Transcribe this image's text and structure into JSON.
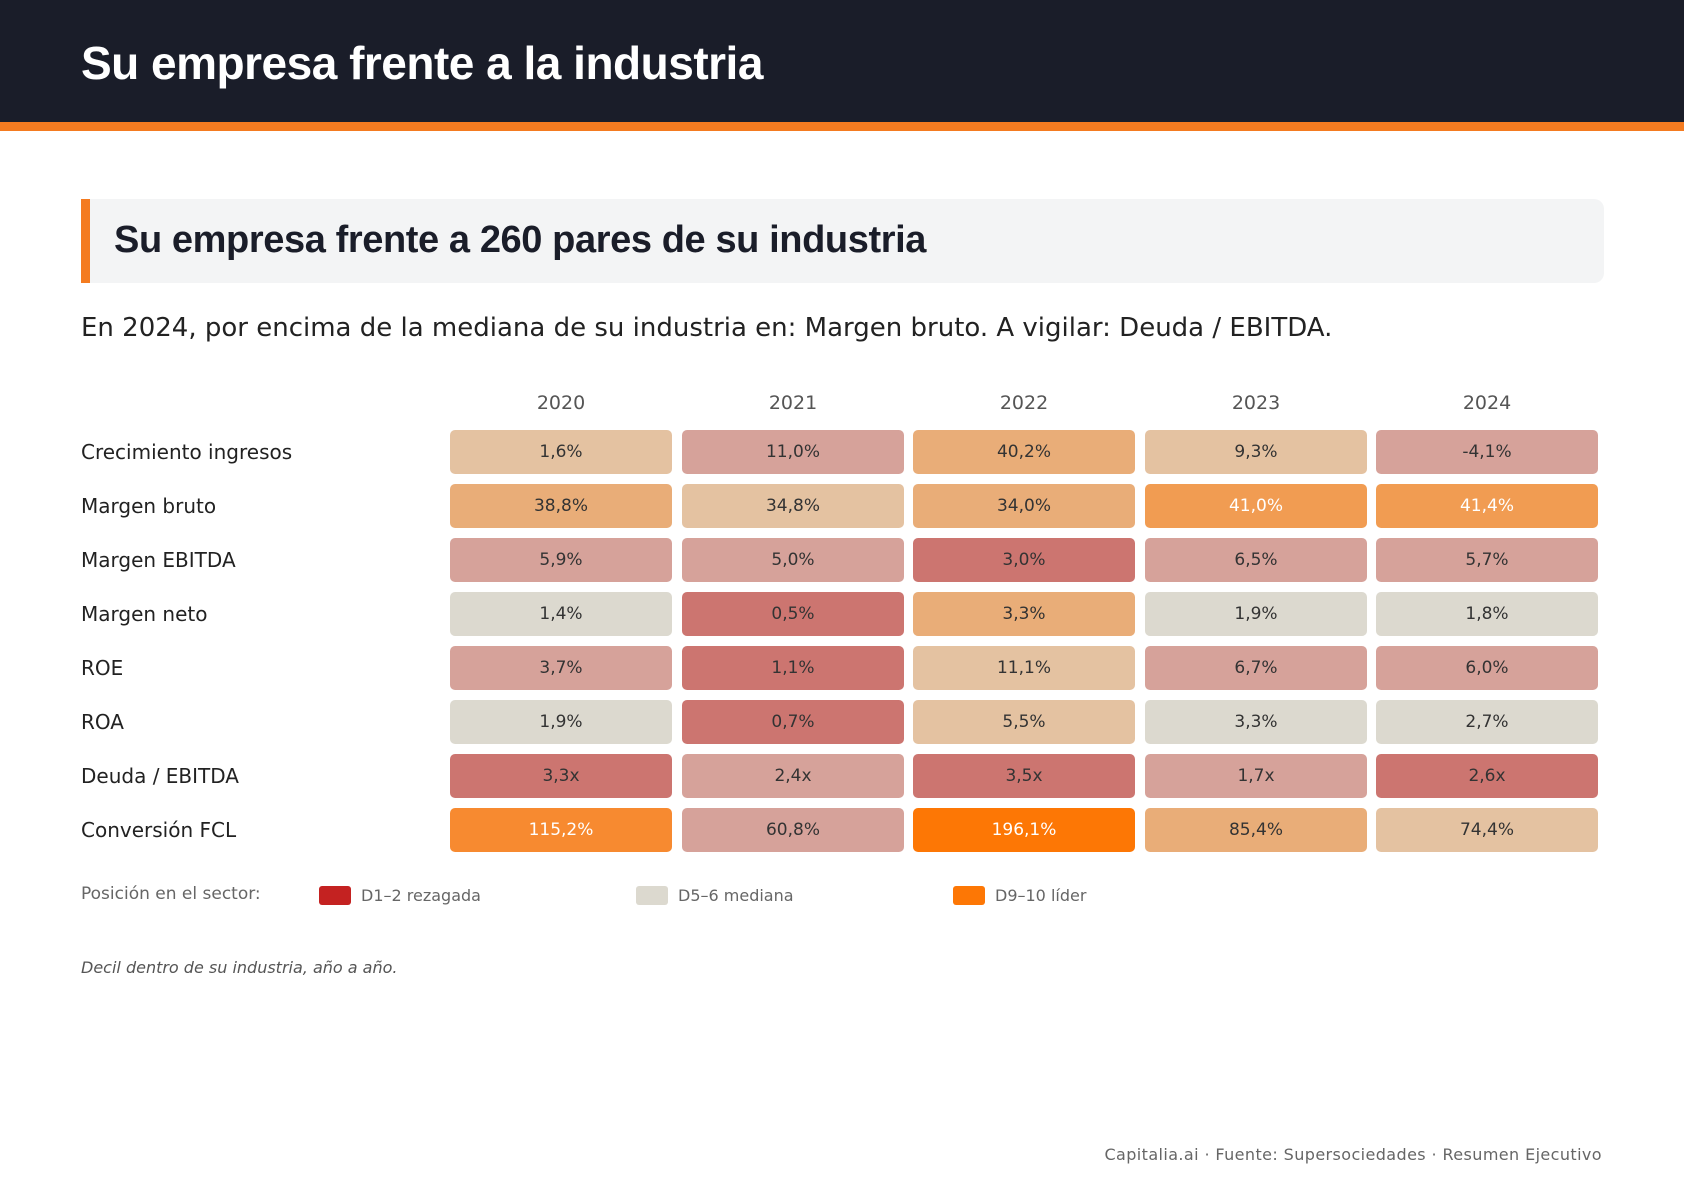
{
  "header": {
    "title": "Su empresa frente a la industria"
  },
  "section": {
    "title": "Su empresa frente a 260 pares de su industria"
  },
  "summary": "En 2024, por encima de la mediana de su industria en: Margen bruto. A vigilar: Deuda / EBITDA.",
  "chart_data": {
    "type": "heatmap",
    "columns": [
      "2020",
      "2021",
      "2022",
      "2023",
      "2024"
    ],
    "rows": [
      {
        "label": "Crecimiento ingresos",
        "values": [
          "1,6%",
          "11,0%",
          "40,2%",
          "9,3%",
          "-4,1%"
        ],
        "colors": [
          "#e4c2a1",
          "#d6a29a",
          "#e9ad78",
          "#e4c2a1",
          "#d6a29a"
        ]
      },
      {
        "label": "Margen bruto",
        "values": [
          "38,8%",
          "34,8%",
          "34,0%",
          "41,0%",
          "41,4%"
        ],
        "colors": [
          "#e9ad78",
          "#e4c2a1",
          "#e9ad78",
          "#f19c52",
          "#f19c52"
        ]
      },
      {
        "label": "Margen EBITDA",
        "values": [
          "5,9%",
          "5,0%",
          "3,0%",
          "6,5%",
          "5,7%"
        ],
        "colors": [
          "#d6a29a",
          "#d6a29a",
          "#cc7570",
          "#d6a29a",
          "#d6a29a"
        ]
      },
      {
        "label": "Margen neto",
        "values": [
          "1,4%",
          "0,5%",
          "3,3%",
          "1,9%",
          "1,8%"
        ],
        "colors": [
          "#dcd9cf",
          "#cc7570",
          "#e9ad78",
          "#dcd9cf",
          "#dcd9cf"
        ]
      },
      {
        "label": "ROE",
        "values": [
          "3,7%",
          "1,1%",
          "11,1%",
          "6,7%",
          "6,0%"
        ],
        "colors": [
          "#d6a29a",
          "#cc7570",
          "#e4c2a1",
          "#d6a29a",
          "#d6a29a"
        ]
      },
      {
        "label": "ROA",
        "values": [
          "1,9%",
          "0,7%",
          "5,5%",
          "3,3%",
          "2,7%"
        ],
        "colors": [
          "#dcd9cf",
          "#cc7570",
          "#e4c2a1",
          "#dcd9cf",
          "#dcd9cf"
        ]
      },
      {
        "label": "Deuda / EBITDA",
        "values": [
          "3,3x",
          "2,4x",
          "3,5x",
          "1,7x",
          "2,6x"
        ],
        "colors": [
          "#cc7570",
          "#d6a29a",
          "#cc7570",
          "#d6a29a",
          "#cc7570"
        ]
      },
      {
        "label": "Conversión FCL",
        "values": [
          "115,2%",
          "60,8%",
          "196,1%",
          "85,4%",
          "74,4%"
        ],
        "colors": [
          "#f78a30",
          "#d6a29a",
          "#fd7705",
          "#e9ad78",
          "#e4c2a1"
        ]
      }
    ],
    "light_text_colors": [
      "#f19c52",
      "#f78a30",
      "#fd7705"
    ]
  },
  "legend": {
    "caption": "Posición en el sector:",
    "items": [
      {
        "label": "D1–2 rezagada",
        "color": "#c42221"
      },
      {
        "label": "D5–6 mediana",
        "color": "#dcd9cf"
      },
      {
        "label": "D9–10 líder",
        "color": "#fd7705"
      }
    ]
  },
  "footnote": "Decil dentro de su industria, año a año.",
  "footer": "Capitalia.ai · Fuente: Supersociedades · Resumen Ejecutivo"
}
